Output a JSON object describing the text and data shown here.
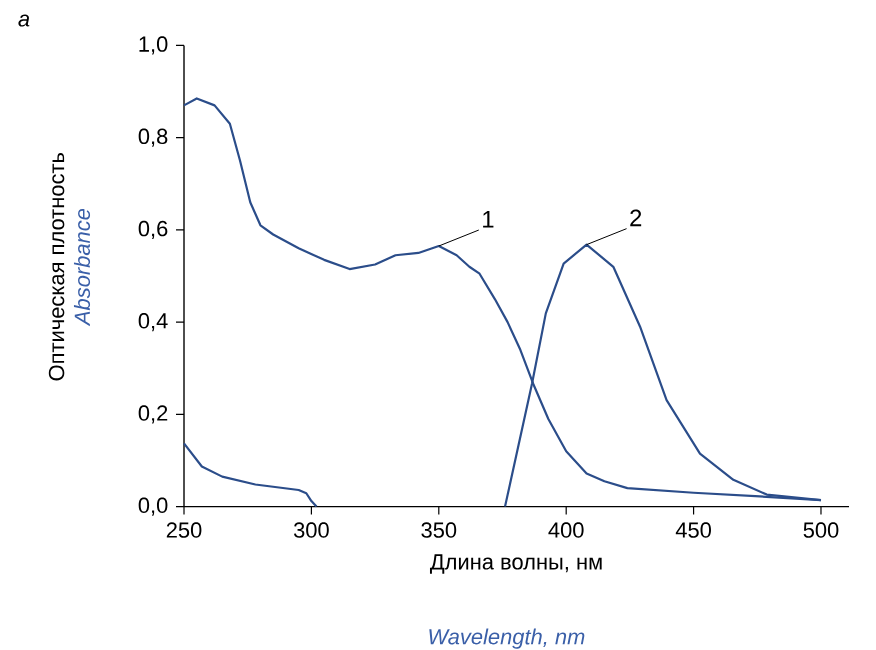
{
  "chart_data": {
    "type": "line",
    "xlabel": "Длина волны, нм",
    "ylabel": "Оптическая плотность",
    "x": [
      250,
      255,
      262,
      268,
      272,
      276,
      280,
      285,
      295,
      305,
      315,
      325,
      333,
      342,
      350,
      357,
      362,
      366,
      372,
      377,
      382,
      387,
      393,
      400,
      408,
      415,
      424,
      450,
      476,
      500
    ],
    "series": [
      {
        "color": "#2b4d8a",
        "values": [
          0.87,
          0.885,
          0.87,
          0.83,
          0.75,
          0.66,
          0.61,
          0.59,
          0.56,
          0.535,
          0.515,
          0.525,
          0.545,
          0.55,
          0.565,
          0.545,
          0.52,
          0.505,
          0.45,
          0.4,
          0.34,
          0.267,
          0.19,
          0.12,
          0.072,
          0.055,
          0.04,
          0.03,
          0.022,
          0.014
        ]
      },
      {
        "color": "#2b4d8a",
        "x": [
          250,
          257,
          265,
          278,
          295,
          298,
          300,
          302,
          340,
          376,
          386.6,
          392,
          399,
          408,
          418.5,
          429,
          439.4,
          452.5,
          465.6,
          478.7,
          500
        ],
        "values": [
          0.137,
          0.087,
          0.065,
          0.048,
          0.036,
          0.029,
          0.012,
          0,
          null,
          0,
          0.267,
          0.419,
          0.527,
          0.568,
          0.52,
          0.39,
          0.231,
          0.115,
          0.058,
          0.026,
          0.014
        ]
      }
    ],
    "xlim": [
      250,
      511
    ],
    "ylim": [
      0,
      1
    ],
    "xticks": [
      250,
      300,
      350,
      400,
      450,
      500
    ],
    "yticks": [
      {
        "value": 0,
        "label": "0,0"
      },
      {
        "value": 0.2,
        "label": "0,2"
      },
      {
        "value": 0.4,
        "label": "0,4"
      },
      {
        "value": 0.6,
        "label": "0,6"
      },
      {
        "value": 0.8,
        "label": "0,8"
      },
      {
        "value": 1,
        "label": "1,0"
      }
    ],
    "line_style": "solid",
    "annotations": [
      "a",
      "Absorbance",
      "Wavelength, nm",
      {
        "text": "1",
        "x": 350,
        "y": 0.565
      },
      {
        "text": "2",
        "x": 408,
        "y": 0.568
      }
    ]
  }
}
